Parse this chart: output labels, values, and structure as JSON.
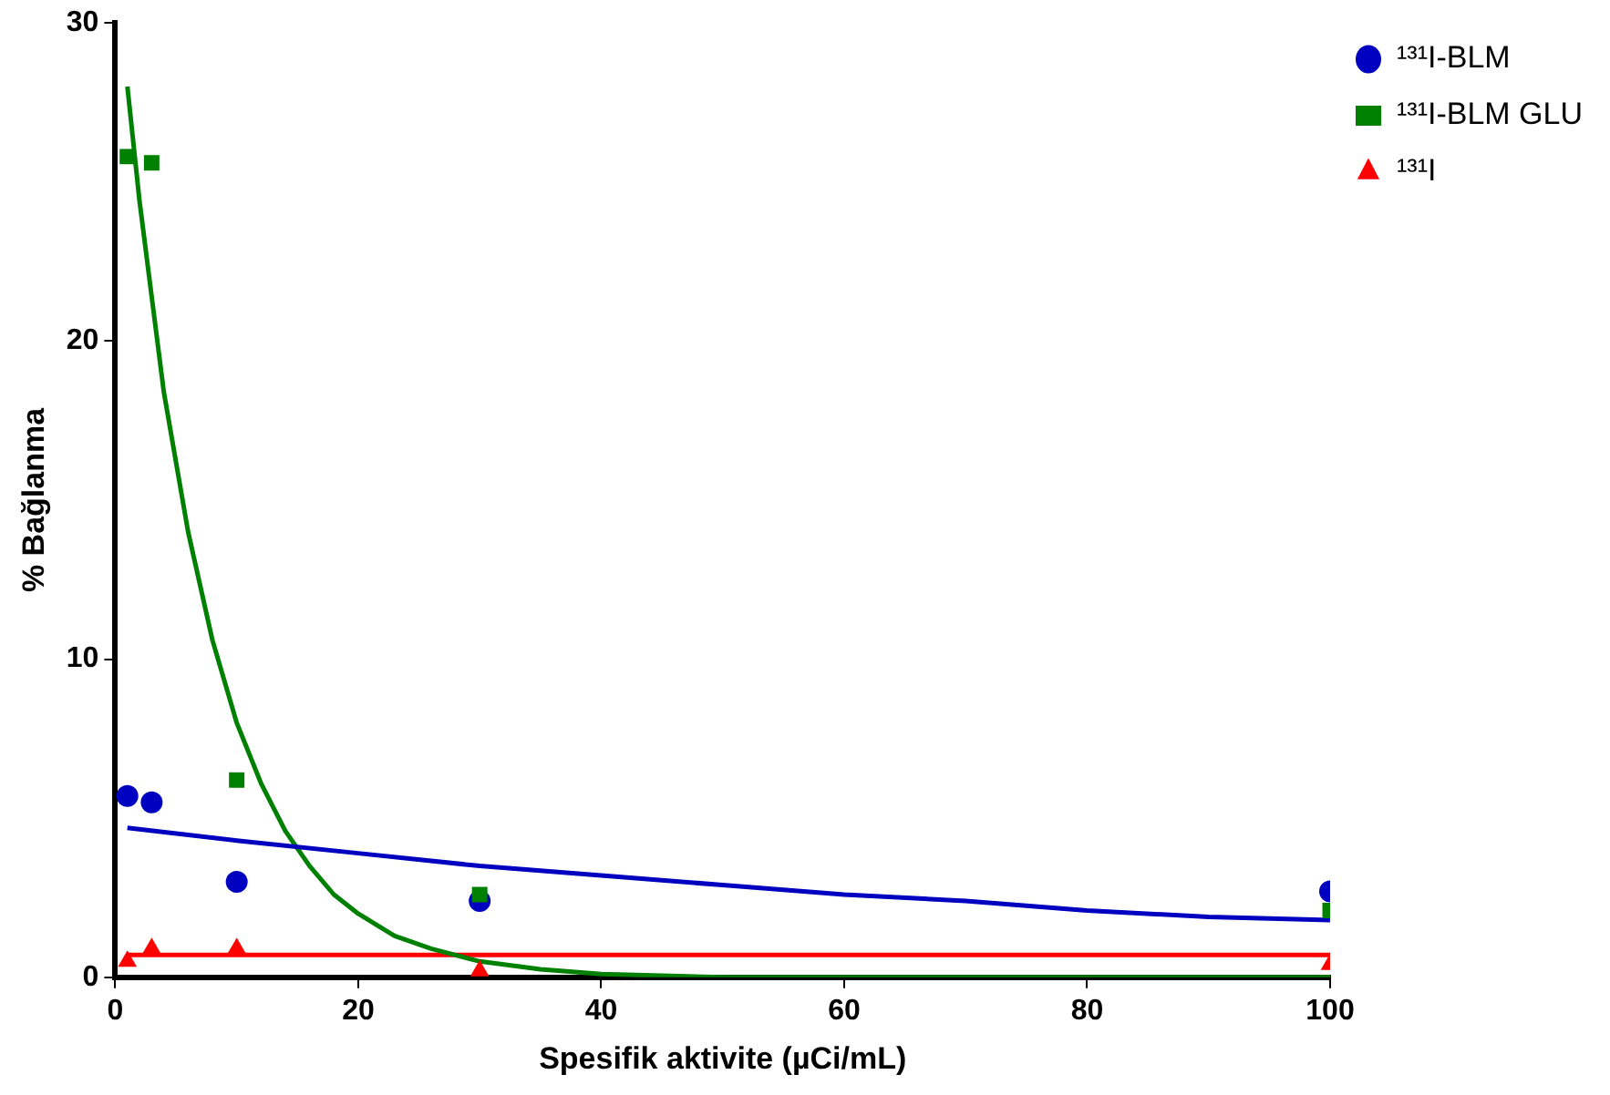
{
  "chart_data": {
    "type": "scatter",
    "xlabel": "Spesifik aktivite (µCi/mL)",
    "ylabel": "% Bağlanma",
    "xlim": [
      0,
      100
    ],
    "xticks": [
      0,
      20,
      40,
      60,
      80,
      100
    ],
    "ylim": [
      0,
      30
    ],
    "yticks": [
      0,
      10,
      20,
      30
    ],
    "grid": false,
    "legend": "top right",
    "series": [
      {
        "name": "¹³¹I-BLM",
        "color": "#0000c0",
        "marker": "circle",
        "x": [
          1,
          3,
          10,
          30,
          100
        ],
        "values": [
          5.7,
          5.5,
          3.0,
          2.4,
          2.7
        ]
      },
      {
        "name": "¹³¹I-BLM GLU",
        "color": "#008000",
        "marker": "square",
        "x": [
          1,
          3,
          10,
          30,
          100
        ],
        "values": [
          25.8,
          25.6,
          6.2,
          2.6,
          2.1
        ]
      },
      {
        "name": "¹³¹I",
        "color": "#ff0000",
        "marker": "triangle",
        "x": [
          1,
          3,
          10,
          30,
          100
        ],
        "values": [
          0.5,
          0.9,
          0.9,
          0.2,
          0.4
        ]
      },
      {
        "type": "line",
        "color": "#0000c0",
        "marker": "none",
        "x": [
          1,
          10,
          20,
          30,
          40,
          50,
          60,
          70,
          80,
          90,
          100
        ],
        "values": [
          4.7,
          4.3,
          3.9,
          3.5,
          3.2,
          2.9,
          2.6,
          2.4,
          2.1,
          1.9,
          1.8
        ]
      },
      {
        "type": "line",
        "color": "#008000",
        "marker": "none",
        "x": [
          1,
          2,
          4,
          6,
          8,
          10,
          12,
          14,
          16,
          18,
          20,
          23,
          26,
          30,
          35,
          40,
          50,
          60,
          80,
          100
        ],
        "values": [
          28.0,
          24.4,
          18.4,
          14.0,
          10.6,
          8.0,
          6.1,
          4.6,
          3.5,
          2.6,
          2.0,
          1.3,
          0.9,
          0.5,
          0.25,
          0.1,
          0,
          0,
          0,
          0
        ]
      },
      {
        "type": "line",
        "color": "#ff0000",
        "marker": "none",
        "x": [
          1,
          100
        ],
        "values": [
          0.7,
          0.7
        ]
      }
    ]
  }
}
